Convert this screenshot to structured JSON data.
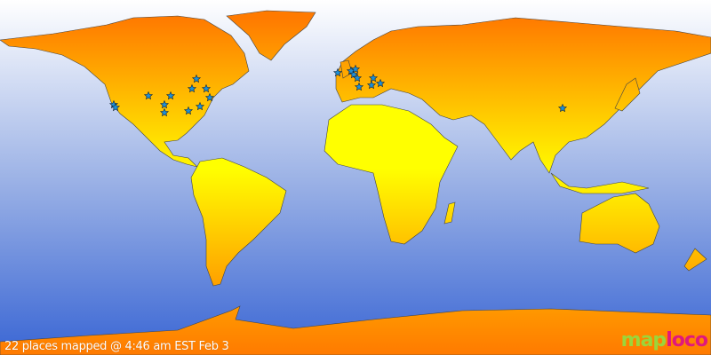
{
  "caption": "22 places mapped @ 4:46 am EST Feb 3",
  "logo": {
    "part1": "map",
    "part2": "loco"
  },
  "colors": {
    "ocean_top": "#ffffff",
    "ocean_bottom": "#3a66d4",
    "land_top": "#ff7a00",
    "land_bottom": "#ffff00",
    "marker": "#1e90d8"
  },
  "marker_icon": "star-icon",
  "places_count": 22
}
